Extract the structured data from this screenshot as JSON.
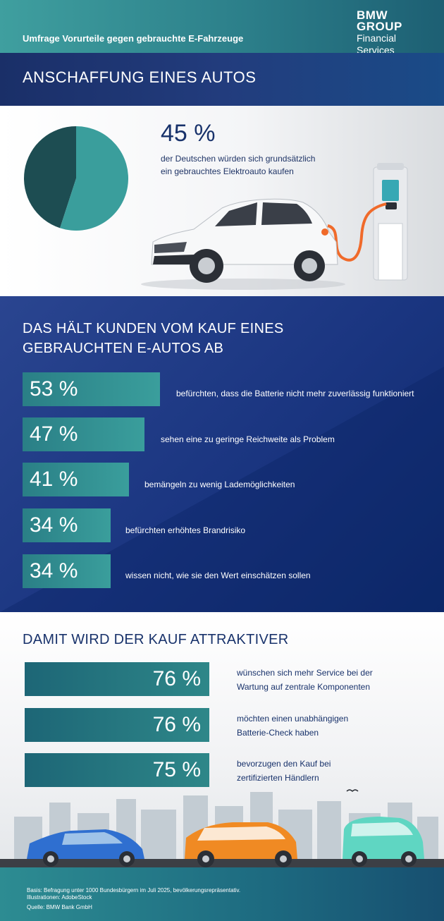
{
  "header": {
    "survey_title": "Umfrage Vorurteile gegen gebrauchte E-Fahrzeuge",
    "brand_line1": "BMW",
    "brand_line2": "GROUP",
    "brand_line3": "Financial Services"
  },
  "section1": {
    "title": "ANSCHAFFUNG EINES AUTOS",
    "percent_label": "45 %",
    "desc_line1": "der Deutschen würden sich grundsätzlich",
    "desc_line2": "ein gebrauchtes Elektroauto kaufen"
  },
  "section2": {
    "title_line1": "DAS HÄLT KUNDEN VOM KAUF EINES",
    "title_line2": "GEBRAUCHTEN E-AUTOS AB"
  },
  "section3": {
    "title": "DAMIT WIRD DER KAUF ATTRAKTIVER"
  },
  "footer": {
    "basis": "Basis: Befragung unter 1000 Bundesbürgern im Juli 2025, bevölkerungsrepräsentativ.",
    "illustrations": "Illustrationen: AdobeStock",
    "source": "Quelle: BMW Bank GmbH"
  },
  "colors": {
    "navy": "#1a2f68",
    "teal": "#3a9e9c",
    "dark_teal": "#1d4d52",
    "text_navy": "#18326b"
  },
  "chart_data": [
    {
      "type": "pie",
      "title": "",
      "slices": [
        {
          "label": "45 %",
          "value": 45,
          "color": "#1d4d52"
        },
        {
          "label": "",
          "value": 55,
          "color": "#3a9e9c"
        }
      ]
    },
    {
      "type": "bar",
      "title": "DAS HÄLT KUNDEN VOM KAUF EINES GEBRAUCHTEN E-AUTOS AB",
      "orientation": "horizontal",
      "unit": "%",
      "items": [
        {
          "label": "53 %",
          "value": 53,
          "description": "befürchten, dass die Batterie nicht mehr zuverlässig funktioniert"
        },
        {
          "label": "47 %",
          "value": 47,
          "description": "sehen eine zu geringe Reichweite als Problem"
        },
        {
          "label": "41 %",
          "value": 41,
          "description": "bemängeln zu wenig Lademöglichkeiten"
        },
        {
          "label": "34 %",
          "value": 34,
          "description": "befürchten erhöhtes Brandrisiko"
        },
        {
          "label": "34 %",
          "value": 34,
          "description": "wissen nicht, wie sie den Wert einschätzen sollen"
        }
      ]
    },
    {
      "type": "bar",
      "title": "DAMIT WIRD DER KAUF ATTRAKTIVER",
      "orientation": "horizontal",
      "unit": "%",
      "items": [
        {
          "label": "76 %",
          "value": 76,
          "desc_line1": "wünschen sich mehr Service bei der",
          "desc_line2": "Wartung auf zentrale Komponenten"
        },
        {
          "label": "76 %",
          "value": 76,
          "desc_line1": "möchten einen unabhängigen",
          "desc_line2": "Batterie-Check haben"
        },
        {
          "label": "75 %",
          "value": 75,
          "desc_line1": "bevorzugen den Kauf bei",
          "desc_line2": "zertifizierten Händlern"
        }
      ]
    }
  ]
}
